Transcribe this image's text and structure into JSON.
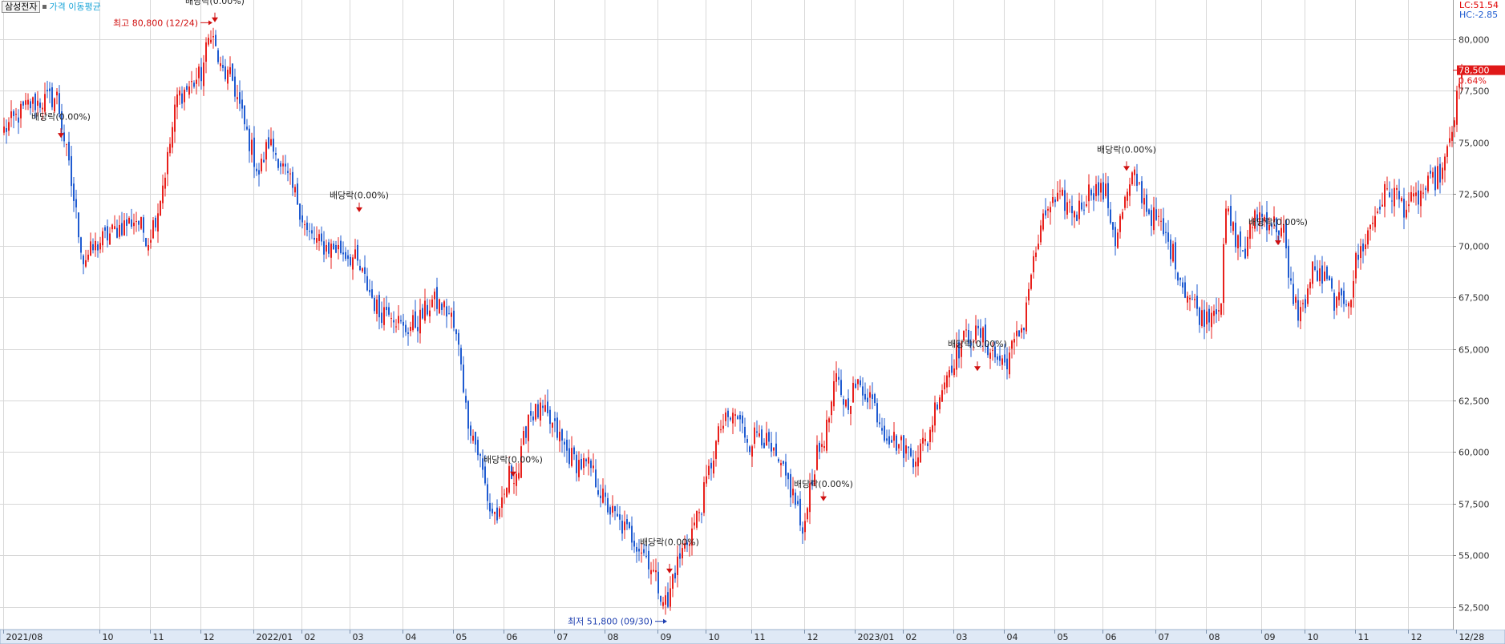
{
  "legend": {
    "stock_name": "삼성전자",
    "ma_label": "가격 이동평균"
  },
  "indicators": {
    "lc": "LC:51.54",
    "hc": "HC:-2.85"
  },
  "current": {
    "price_label": "78,500",
    "change_label": "0.64%"
  },
  "colors": {
    "up": "#e8201c",
    "down": "#1f5bd1",
    "grid": "#d8d8d8",
    "axis_bg": "#dfe9f6"
  },
  "chart_data": {
    "type": "candlestick",
    "y_ticks": [
      52500,
      55000,
      57500,
      60000,
      62500,
      65000,
      67500,
      70000,
      72500,
      75000,
      77500,
      80000
    ],
    "y_tick_labels": [
      "52,500",
      "55,000",
      "57,500",
      "60,000",
      "62,500",
      "65,000",
      "67,500",
      "70,000",
      "72,500",
      "75,000",
      "77,500",
      "80,000"
    ],
    "ylim": [
      51400,
      81900
    ],
    "x_ticks": [
      {
        "label": "2021/08",
        "index": 0
      },
      {
        "label": "10",
        "index": 40
      },
      {
        "label": "11",
        "index": 61
      },
      {
        "label": "12",
        "index": 82
      },
      {
        "label": "2022/01",
        "index": 104
      },
      {
        "label": "02",
        "index": 124
      },
      {
        "label": "03",
        "index": 144
      },
      {
        "label": "04",
        "index": 166
      },
      {
        "label": "05",
        "index": 187
      },
      {
        "label": "06",
        "index": 208
      },
      {
        "label": "07",
        "index": 229
      },
      {
        "label": "08",
        "index": 250
      },
      {
        "label": "09",
        "index": 272
      },
      {
        "label": "10",
        "index": 292
      },
      {
        "label": "11",
        "index": 311
      },
      {
        "label": "12",
        "index": 333
      },
      {
        "label": "2023/01",
        "index": 354
      },
      {
        "label": "02",
        "index": 374
      },
      {
        "label": "03",
        "index": 395
      },
      {
        "label": "04",
        "index": 416
      },
      {
        "label": "05",
        "index": 437
      },
      {
        "label": "06",
        "index": 457
      },
      {
        "label": "07",
        "index": 479
      },
      {
        "label": "08",
        "index": 500
      },
      {
        "label": "09",
        "index": 523
      },
      {
        "label": "10",
        "index": 541
      },
      {
        "label": "11",
        "index": 562
      },
      {
        "label": "12",
        "index": 584
      },
      {
        "label": "12/28",
        "index": 604
      }
    ],
    "n_bars": 594,
    "close_anchors": [
      [
        0,
        75600
      ],
      [
        10,
        76800
      ],
      [
        22,
        77200
      ],
      [
        25,
        75200
      ],
      [
        30,
        71500
      ],
      [
        33,
        69300
      ],
      [
        40,
        70200
      ],
      [
        48,
        70900
      ],
      [
        55,
        71300
      ],
      [
        60,
        70300
      ],
      [
        64,
        71800
      ],
      [
        68,
        74200
      ],
      [
        72,
        77200
      ],
      [
        78,
        77800
      ],
      [
        82,
        78300
      ],
      [
        86,
        80500
      ],
      [
        90,
        78500
      ],
      [
        95,
        78000
      ],
      [
        100,
        75800
      ],
      [
        106,
        73500
      ],
      [
        110,
        75000
      ],
      [
        114,
        74300
      ],
      [
        118,
        73200
      ],
      [
        122,
        72200
      ],
      [
        126,
        70600
      ],
      [
        132,
        70000
      ],
      [
        140,
        69800
      ],
      [
        146,
        69300
      ],
      [
        150,
        68300
      ],
      [
        156,
        66700
      ],
      [
        160,
        67100
      ],
      [
        166,
        65900
      ],
      [
        172,
        66300
      ],
      [
        178,
        67300
      ],
      [
        182,
        67100
      ],
      [
        186,
        66500
      ],
      [
        190,
        64500
      ],
      [
        192,
        62100
      ],
      [
        194,
        61200
      ],
      [
        198,
        59600
      ],
      [
        202,
        57200
      ],
      [
        206,
        56800
      ],
      [
        210,
        58900
      ],
      [
        214,
        59100
      ],
      [
        218,
        61900
      ],
      [
        224,
        61900
      ],
      [
        230,
        60900
      ],
      [
        234,
        60000
      ],
      [
        238,
        59500
      ],
      [
        244,
        59200
      ],
      [
        250,
        57500
      ],
      [
        256,
        56500
      ],
      [
        262,
        55800
      ],
      [
        268,
        54800
      ],
      [
        272,
        53500
      ],
      [
        276,
        52500
      ],
      [
        278,
        54000
      ],
      [
        282,
        55200
      ],
      [
        286,
        56200
      ],
      [
        290,
        57500
      ],
      [
        294,
        59500
      ],
      [
        298,
        61200
      ],
      [
        304,
        61800
      ],
      [
        310,
        60500
      ],
      [
        314,
        61100
      ],
      [
        320,
        59700
      ],
      [
        326,
        58500
      ],
      [
        330,
        57300
      ],
      [
        332,
        55600
      ],
      [
        334,
        57800
      ],
      [
        338,
        59800
      ],
      [
        342,
        61100
      ],
      [
        346,
        63500
      ],
      [
        350,
        62300
      ],
      [
        354,
        63200
      ],
      [
        360,
        62800
      ],
      [
        366,
        61000
      ],
      [
        372,
        60400
      ],
      [
        378,
        59800
      ],
      [
        384,
        60600
      ],
      [
        388,
        62600
      ],
      [
        392,
        63800
      ],
      [
        396,
        64800
      ],
      [
        400,
        65600
      ],
      [
        406,
        65700
      ],
      [
        412,
        64600
      ],
      [
        416,
        64300
      ],
      [
        420,
        65200
      ],
      [
        424,
        66300
      ],
      [
        426,
        68100
      ],
      [
        430,
        70200
      ],
      [
        434,
        71900
      ],
      [
        440,
        72200
      ],
      [
        446,
        71600
      ],
      [
        452,
        72800
      ],
      [
        458,
        72500
      ],
      [
        462,
        70300
      ],
      [
        466,
        72100
      ],
      [
        470,
        73400
      ],
      [
        476,
        71600
      ],
      [
        480,
        71100
      ],
      [
        486,
        69600
      ],
      [
        490,
        68100
      ],
      [
        494,
        67300
      ],
      [
        498,
        66500
      ],
      [
        502,
        66900
      ],
      [
        506,
        67400
      ],
      [
        508,
        71700
      ],
      [
        512,
        70400
      ],
      [
        516,
        69600
      ],
      [
        520,
        71600
      ],
      [
        526,
        71200
      ],
      [
        532,
        70700
      ],
      [
        534,
        68300
      ],
      [
        538,
        66800
      ],
      [
        540,
        66900
      ],
      [
        544,
        68800
      ],
      [
        550,
        68200
      ],
      [
        554,
        67100
      ],
      [
        556,
        67300
      ],
      [
        560,
        67700
      ],
      [
        562,
        69200
      ],
      [
        566,
        70300
      ],
      [
        570,
        71500
      ],
      [
        574,
        72500
      ],
      [
        578,
        72600
      ],
      [
        582,
        71900
      ],
      [
        586,
        72100
      ],
      [
        590,
        72600
      ],
      [
        594,
        73100
      ],
      [
        598,
        73600
      ],
      [
        600,
        74400
      ],
      [
        603,
        76300
      ],
      [
        605,
        77700
      ],
      [
        606,
        78500
      ]
    ],
    "annotations": [
      {
        "text": "배당락(0.00%)",
        "index": 24,
        "price": 76100,
        "arrow_price": 75300
      },
      {
        "text": "배당락(0.00%)",
        "index": 88,
        "price": 81700,
        "arrow_price": 80900
      },
      {
        "text": "배당락(0.00%)",
        "index": 148,
        "price": 72300,
        "arrow_price": 71700
      },
      {
        "text": "배당락(0.00%)",
        "index": 212,
        "price": 59500,
        "arrow_price": 58900
      },
      {
        "text": "배당락(0.00%)",
        "index": 277,
        "price": 55500,
        "arrow_price": 54200
      },
      {
        "text": "배당락(0.00%)",
        "index": 341,
        "price": 58300,
        "arrow_price": 57700
      },
      {
        "text": "배당락(0.00%)",
        "index": 405,
        "price": 65100,
        "arrow_price": 64000
      },
      {
        "text": "배당락(0.00%)",
        "index": 467,
        "price": 74500,
        "arrow_price": 73700
      },
      {
        "text": "배당락(0.00%)",
        "index": 530,
        "price": 71000,
        "arrow_price": 70100
      }
    ],
    "extremes": [
      {
        "text": "최고 80,800 (12/24)",
        "index": 87,
        "price": 80800,
        "kind": "high"
      },
      {
        "text": "최저 51,800 (09/30)",
        "index": 276,
        "price": 51800,
        "kind": "low"
      }
    ],
    "last_price": 78500
  }
}
